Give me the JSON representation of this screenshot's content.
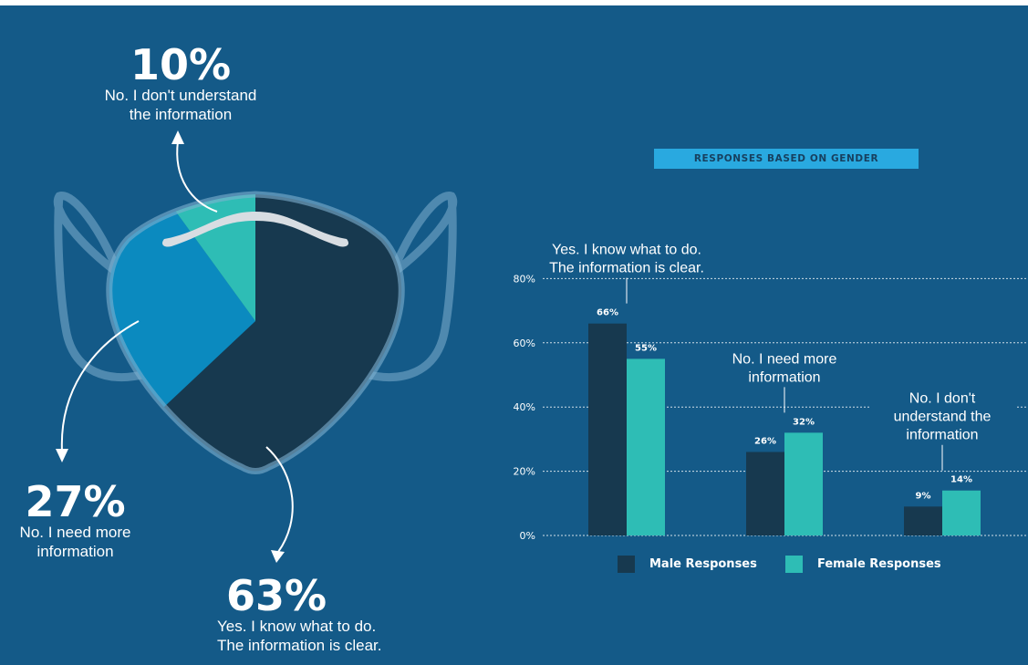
{
  "colors": {
    "background": "#145a88",
    "male": "#17394f",
    "female": "#2ebdb5",
    "light_blue": "#0b8abf",
    "teal": "#2ebdb5",
    "dark": "#17394f",
    "badge": "#29a9e0"
  },
  "overall": [
    {
      "pct": "10%",
      "label_line1": "No. I don't understand",
      "label_line2": "the information"
    },
    {
      "pct": "27%",
      "label_line1": "No. I need more",
      "label_line2": "information"
    },
    {
      "pct": "63%",
      "label_line1": "Yes. I know what to do.",
      "label_line2": "The information is clear."
    }
  ],
  "chart_data": [
    {
      "type": "pie",
      "labels": [
        "No. I don't understand the information",
        "No. I need more information",
        "Yes. I know what to do. The information is clear."
      ],
      "values": [
        10,
        27,
        63
      ],
      "colors": [
        "#2ebdb5",
        "#0b8abf",
        "#17394f"
      ]
    },
    {
      "type": "bar",
      "title": "RESPONSES BASED ON GENDER",
      "categories": [
        "Yes. I know what to do. The information is clear.",
        "No. I need more information",
        "No. I don't understand the information"
      ],
      "category_labels": [
        [
          "Yes. I know what to do.",
          "The information is clear."
        ],
        [
          "No. I need more",
          "information"
        ],
        [
          "No. I don't",
          "understand the",
          "information"
        ]
      ],
      "series": [
        {
          "name": "Male Responses",
          "values": [
            66,
            26,
            9
          ],
          "labels": [
            "66%",
            "26%",
            "9%"
          ],
          "color": "#17394f"
        },
        {
          "name": "Female Responses",
          "values": [
            55,
            32,
            14
          ],
          "labels": [
            "55%",
            "32%",
            "14%"
          ],
          "color": "#2ebdb5"
        }
      ],
      "yticks": [
        "0%",
        "20%",
        "40%",
        "60%",
        "80%"
      ],
      "ytick_values": [
        0,
        20,
        40,
        60,
        80
      ],
      "ylim": [
        0,
        80
      ],
      "grid": true,
      "legend_position": "bottom"
    }
  ]
}
